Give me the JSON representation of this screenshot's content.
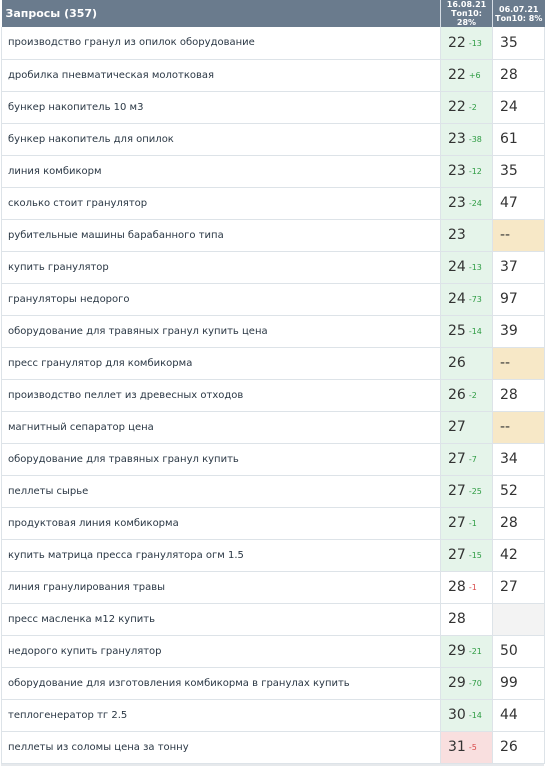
{
  "header": {
    "title": "Запросы (357)",
    "date1": "16.08.21",
    "top1": "Топ10: 28%",
    "date2": "06.07.21",
    "top2": "Топ10: 8%"
  },
  "rows": [
    {
      "query": "производство гранул из опилок оборудование",
      "pos1": "22",
      "delta": "-13",
      "dir": "up",
      "bg": "green",
      "pos2": "35",
      "bg2": ""
    },
    {
      "query": "дробилка пневматическая молотковая",
      "pos1": "22",
      "delta": "+6",
      "dir": "up",
      "bg": "green",
      "pos2": "28",
      "bg2": ""
    },
    {
      "query": "бункер накопитель 10 м3",
      "pos1": "22",
      "delta": "-2",
      "dir": "up",
      "bg": "green",
      "pos2": "24",
      "bg2": ""
    },
    {
      "query": "бункер накопитель для опилок",
      "pos1": "23",
      "delta": "-38",
      "dir": "up",
      "bg": "green",
      "pos2": "61",
      "bg2": ""
    },
    {
      "query": "линия комбикорм",
      "pos1": "23",
      "delta": "-12",
      "dir": "up",
      "bg": "green",
      "pos2": "35",
      "bg2": ""
    },
    {
      "query": "сколько стоит гранулятор",
      "pos1": "23",
      "delta": "-24",
      "dir": "up",
      "bg": "green",
      "pos2": "47",
      "bg2": ""
    },
    {
      "query": "рубительные машины барабанного типа",
      "pos1": "23",
      "delta": "",
      "dir": "",
      "bg": "green",
      "pos2": "--",
      "bg2": "amber"
    },
    {
      "query": "купить гранулятор",
      "pos1": "24",
      "delta": "-13",
      "dir": "up",
      "bg": "green",
      "pos2": "37",
      "bg2": ""
    },
    {
      "query": "грануляторы недорого",
      "pos1": "24",
      "delta": "-73",
      "dir": "up",
      "bg": "green",
      "pos2": "97",
      "bg2": ""
    },
    {
      "query": "оборудование для травяных гранул купить цена",
      "pos1": "25",
      "delta": "-14",
      "dir": "up",
      "bg": "green",
      "pos2": "39",
      "bg2": ""
    },
    {
      "query": "пресс гранулятор для комбикорма",
      "pos1": "26",
      "delta": "",
      "dir": "",
      "bg": "green",
      "pos2": "--",
      "bg2": "amber"
    },
    {
      "query": "производство пеллет из древесных отходов",
      "pos1": "26",
      "delta": "-2",
      "dir": "up",
      "bg": "green",
      "pos2": "28",
      "bg2": ""
    },
    {
      "query": "магнитный сепаратор цена",
      "pos1": "27",
      "delta": "",
      "dir": "",
      "bg": "green",
      "pos2": "--",
      "bg2": "amber"
    },
    {
      "query": "оборудование для травяных гранул купить",
      "pos1": "27",
      "delta": "-7",
      "dir": "up",
      "bg": "green",
      "pos2": "34",
      "bg2": ""
    },
    {
      "query": "пеллеты сырье",
      "pos1": "27",
      "delta": "-25",
      "dir": "up",
      "bg": "green",
      "pos2": "52",
      "bg2": ""
    },
    {
      "query": "продуктовая линия комбикорма",
      "pos1": "27",
      "delta": "-1",
      "dir": "up",
      "bg": "green",
      "pos2": "28",
      "bg2": ""
    },
    {
      "query": "купить матрица пресса гранулятора огм 1.5",
      "pos1": "27",
      "delta": "-15",
      "dir": "up",
      "bg": "green",
      "pos2": "42",
      "bg2": ""
    },
    {
      "query": "линия гранулирования травы",
      "pos1": "28",
      "delta": "-1",
      "dir": "down",
      "bg": "",
      "pos2": "27",
      "bg2": ""
    },
    {
      "query": "пресс масленка м12 купить",
      "pos1": "28",
      "delta": "",
      "dir": "",
      "bg": "",
      "pos2": "",
      "bg2": "grey"
    },
    {
      "query": "недорого купить гранулятор",
      "pos1": "29",
      "delta": "-21",
      "dir": "up",
      "bg": "green",
      "pos2": "50",
      "bg2": ""
    },
    {
      "query": "оборудование для изготовления комбикорма в гранулах купить",
      "pos1": "29",
      "delta": "-70",
      "dir": "up",
      "bg": "green",
      "pos2": "99",
      "bg2": ""
    },
    {
      "query": "теплогенератор тг 2.5",
      "pos1": "30",
      "delta": "-14",
      "dir": "up",
      "bg": "green",
      "pos2": "44",
      "bg2": ""
    },
    {
      "query": "пеллеты из соломы цена за тонну",
      "pos1": "31",
      "delta": "-5",
      "dir": "down",
      "bg": "red",
      "pos2": "26",
      "bg2": ""
    }
  ]
}
